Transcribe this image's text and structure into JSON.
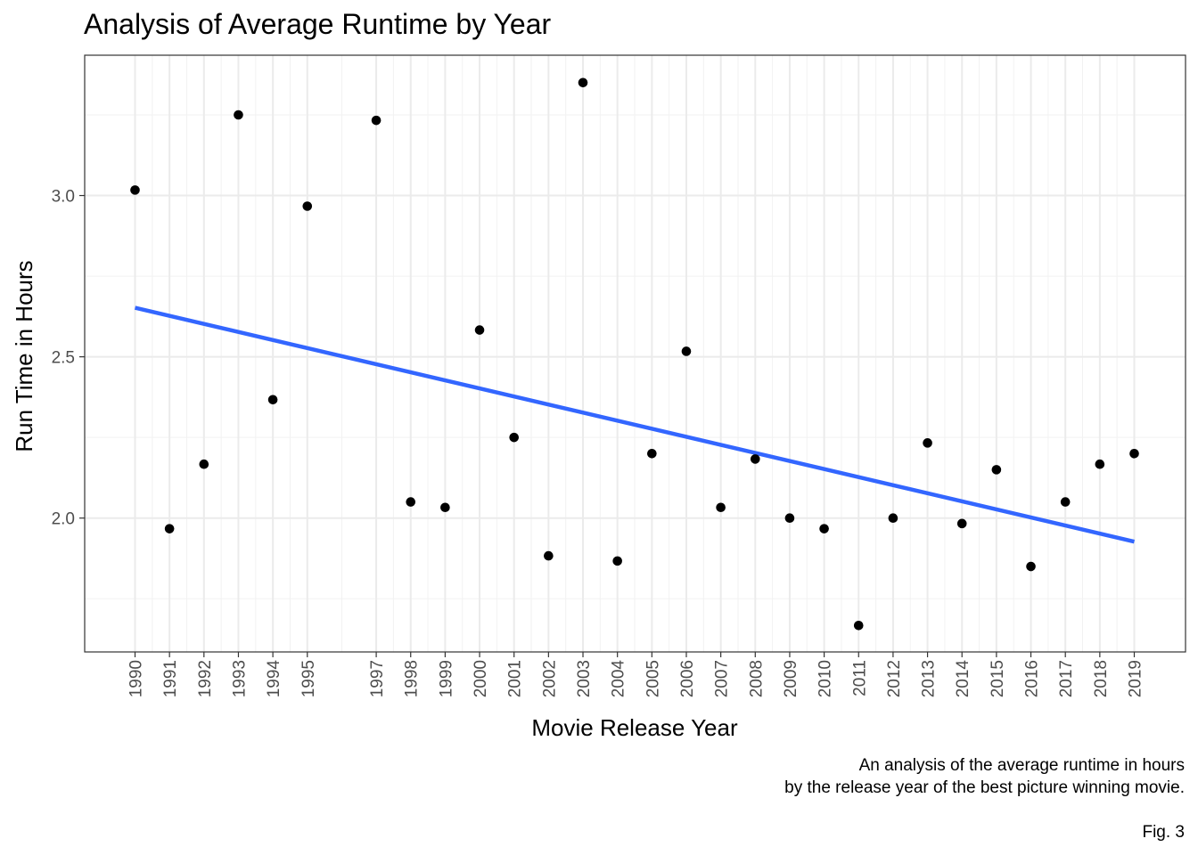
{
  "chart_data": {
    "type": "scatter",
    "title": "Analysis of Average Runtime by Year",
    "xlabel": "Movie Release Year",
    "ylabel": "Run Time in Hours",
    "caption_lines": [
      "An analysis of the average runtime in hours",
      "by the release year of the best picture winning movie."
    ],
    "fig_label": "Fig. 3",
    "x_ticks": [
      1990,
      1991,
      1992,
      1993,
      1994,
      1995,
      1997,
      1998,
      1999,
      2000,
      2001,
      2002,
      2003,
      2004,
      2005,
      2006,
      2007,
      2008,
      2009,
      2010,
      2011,
      2012,
      2013,
      2014,
      2015,
      2016,
      2017,
      2018,
      2019
    ],
    "y_ticks": [
      "2.0",
      "2.5",
      "3.0"
    ],
    "ylim": [
      1.585,
      3.435
    ],
    "points": [
      {
        "x": 1990,
        "y": 3.017
      },
      {
        "x": 1991,
        "y": 1.967
      },
      {
        "x": 1992,
        "y": 2.167
      },
      {
        "x": 1993,
        "y": 3.25
      },
      {
        "x": 1994,
        "y": 2.367
      },
      {
        "x": 1995,
        "y": 2.967
      },
      {
        "x": 1997,
        "y": 3.233
      },
      {
        "x": 1998,
        "y": 2.05
      },
      {
        "x": 1999,
        "y": 2.033
      },
      {
        "x": 2000,
        "y": 2.583
      },
      {
        "x": 2001,
        "y": 2.25
      },
      {
        "x": 2002,
        "y": 1.883
      },
      {
        "x": 2003,
        "y": 3.35
      },
      {
        "x": 2004,
        "y": 1.867
      },
      {
        "x": 2005,
        "y": 2.2
      },
      {
        "x": 2006,
        "y": 2.517
      },
      {
        "x": 2007,
        "y": 2.033
      },
      {
        "x": 2008,
        "y": 2.183
      },
      {
        "x": 2009,
        "y": 2.0
      },
      {
        "x": 2010,
        "y": 1.967
      },
      {
        "x": 2011,
        "y": 1.667
      },
      {
        "x": 2012,
        "y": 2.0
      },
      {
        "x": 2013,
        "y": 2.233
      },
      {
        "x": 2014,
        "y": 1.983
      },
      {
        "x": 2015,
        "y": 2.15
      },
      {
        "x": 2016,
        "y": 1.85
      },
      {
        "x": 2017,
        "y": 2.05
      },
      {
        "x": 2018,
        "y": 2.167
      },
      {
        "x": 2019,
        "y": 2.2
      }
    ],
    "trend_line": {
      "x": [
        1990,
        2019
      ],
      "y": [
        2.652,
        1.927
      ],
      "color": "#3366FF"
    },
    "point_color": "#000000",
    "grid": true,
    "legend": "none"
  }
}
